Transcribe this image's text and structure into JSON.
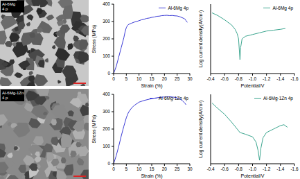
{
  "micrographs": [
    {
      "label": [
        "Al-6Mg",
        "4 p"
      ]
    },
    {
      "label": [
        "Al-6Mg-1Zn",
        "4 p"
      ]
    }
  ],
  "chart_data": [
    {
      "type": "line",
      "xlabel": "Strain (%)",
      "ylabel": "Stress (MPa)",
      "xlim": [
        0,
        30
      ],
      "xticks": [
        0,
        5,
        10,
        15,
        20,
        25,
        30
      ],
      "ylim": [
        0,
        400
      ],
      "yticks": [
        0,
        100,
        200,
        300,
        400
      ],
      "grid": false,
      "legend": "upper right",
      "x": [
        0,
        1,
        2,
        3,
        4,
        4.5,
        5,
        5.5,
        6,
        7,
        8,
        9,
        10,
        11,
        12,
        13,
        14,
        15,
        16,
        17,
        18,
        19,
        20,
        21,
        22,
        23,
        24,
        25,
        26,
        27,
        28,
        28.5,
        29
      ],
      "series": [
        {
          "name": "Al-6Mg 4p",
          "color": "#3a3ad6",
          "values": [
            0,
            40,
            95,
            150,
            205,
            240,
            265,
            278,
            284,
            290,
            296,
            300,
            305,
            310,
            313,
            318,
            320,
            324,
            326,
            330,
            331,
            334,
            335,
            336,
            334,
            335,
            333,
            332,
            328,
            322,
            315,
            305,
            295
          ]
        }
      ]
    },
    {
      "type": "line",
      "xlabel": "Potential/V",
      "ylabel": "Log current density(A/cm²)",
      "xlim": [
        -0.4,
        -1.6
      ],
      "xticks": [
        -0.4,
        -0.6,
        -0.8,
        {
          "value": -1.0,
          "label": "-1.0"
        },
        -1.2,
        -1.4,
        -1.6
      ],
      "ylim": [
        -9,
        -1
      ],
      "yticks": [
        -9,
        -7,
        -5,
        -3,
        -1
      ],
      "tick_labels": "x",
      "grid": false,
      "legend": "upper right",
      "x": [
        -0.42,
        -0.5,
        -0.6,
        -0.7,
        -0.75,
        -0.78,
        -0.8,
        -0.81,
        -0.82,
        -0.83,
        -0.85,
        -0.9,
        -1.0,
        -1.1,
        -1.2,
        -1.3,
        -1.4,
        -1.47
      ],
      "series": [
        {
          "name": "Al-6Mg 4p",
          "color": "#3aa58e",
          "values": [
            -2.0,
            -2.3,
            -2.8,
            -3.4,
            -3.9,
            -4.4,
            -5.0,
            -6.2,
            -7.4,
            -6.0,
            -5.0,
            -4.7,
            -4.5,
            -4.3,
            -4.1,
            -4.0,
            -3.9,
            -3.8
          ]
        }
      ]
    },
    {
      "type": "line",
      "xlabel": "Strain (%)",
      "ylabel": "Stress (MPa)",
      "xlim": [
        0,
        30
      ],
      "xticks": [
        0,
        5,
        10,
        15,
        20,
        25,
        30
      ],
      "ylim": [
        0,
        400
      ],
      "yticks": [
        0,
        100,
        200,
        300,
        400
      ],
      "grid": false,
      "legend": "upper right",
      "x": [
        0,
        1,
        2,
        3,
        4,
        5,
        5.5,
        6,
        7,
        8,
        9,
        10,
        12,
        14,
        16,
        18,
        20,
        22,
        23,
        24,
        25,
        26,
        27,
        28,
        28.5
      ],
      "series": [
        {
          "name": "Al-6Mg-1Zn 4p",
          "color": "#3a3ad6",
          "values": [
            0,
            45,
            100,
            160,
            215,
            265,
            285,
            300,
            320,
            335,
            345,
            355,
            365,
            372,
            378,
            382,
            385,
            386,
            385,
            383,
            380,
            374,
            365,
            350,
            340
          ]
        }
      ]
    },
    {
      "type": "line",
      "xlabel": "Potential/V",
      "ylabel": "Log current density(A/cm²)",
      "xlim": [
        -0.4,
        -1.6
      ],
      "xticks": [
        -0.4,
        -0.6,
        -0.8,
        {
          "value": -1.0,
          "label": "-1.0"
        },
        -1.2,
        -1.4,
        -1.6
      ],
      "ylim": [
        -9,
        -1
      ],
      "yticks": [
        -9,
        -7,
        -5,
        -3,
        -1
      ],
      "tick_labels": "x",
      "grid": false,
      "legend": "upper right",
      "x": [
        -0.42,
        -0.5,
        -0.6,
        -0.7,
        -0.78,
        -0.82,
        -0.9,
        -1.0,
        -1.05,
        -1.08,
        -1.1,
        -1.12,
        -1.15,
        -1.2,
        -1.3,
        -1.4,
        -1.45,
        -1.5
      ],
      "series": [
        {
          "name": "Al-6Mg-1Zn 4p",
          "color": "#3aa58e",
          "values": [
            -2.0,
            -2.6,
            -3.3,
            -4.2,
            -5.0,
            -5.4,
            -5.6,
            -5.9,
            -6.5,
            -7.5,
            -8.6,
            -7.2,
            -6.0,
            -5.4,
            -5.0,
            -4.6,
            -4.5,
            -4.8
          ]
        }
      ]
    }
  ]
}
